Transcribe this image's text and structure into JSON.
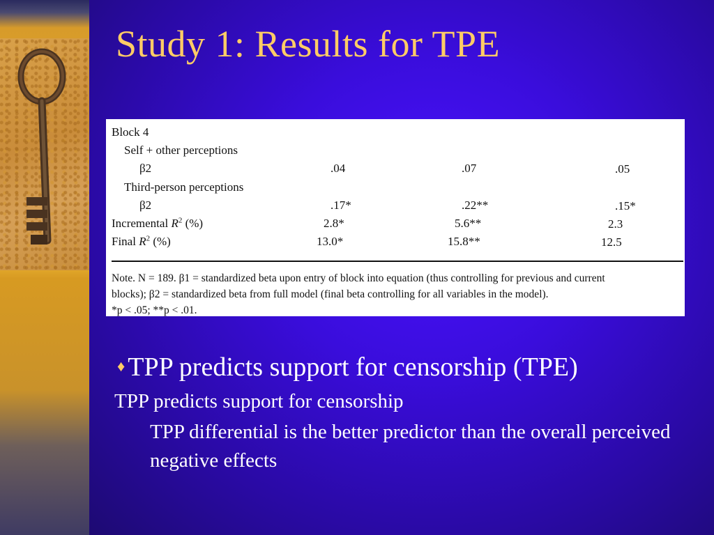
{
  "slide": {
    "title": "Study 1:  Results for TPE"
  },
  "table": {
    "block_label": "Block 4",
    "row_self_other": "Self + other perceptions",
    "row_beta2_a": "β2",
    "vals_a": [
      ".04",
      ".07",
      ".05"
    ],
    "row_third_person": "Third-person perceptions",
    "row_beta2_b": "β2",
    "vals_b": [
      ".17*",
      ".22**",
      ".15*"
    ],
    "incremental_label": "Incremental",
    "incremental_r": "R",
    "incremental_sup": "2",
    "incremental_tail": " (%)",
    "vals_incremental": [
      "2.8*",
      "5.6**",
      "2.3"
    ],
    "final_label": "Final",
    "final_r": "R",
    "final_sup": "2",
    "final_tail": " (%)",
    "vals_final": [
      "13.0*",
      "15.8**",
      "12.5"
    ],
    "note_line1": "Note. N = 189. β1 = standardized beta upon entry of block into equation (thus controlling for previous and current",
    "note_line2": "blocks); β2 = standardized beta from full model (final beta controlling for all variables in the model).",
    "note_line3": "*p < .05; **p < .01."
  },
  "bullets": {
    "main": "TPP predicts support for censorship (TPE)",
    "sub1": "TPP predicts support for censorship",
    "sub2": "TPP differential is the better predictor than the overall perceived negative effects"
  },
  "icons": [
    "diamond-bullet-icon",
    "key-icon"
  ],
  "colors": {
    "title": "#ffcc66",
    "background": "#3a0ddc",
    "text": "#ffffff"
  }
}
